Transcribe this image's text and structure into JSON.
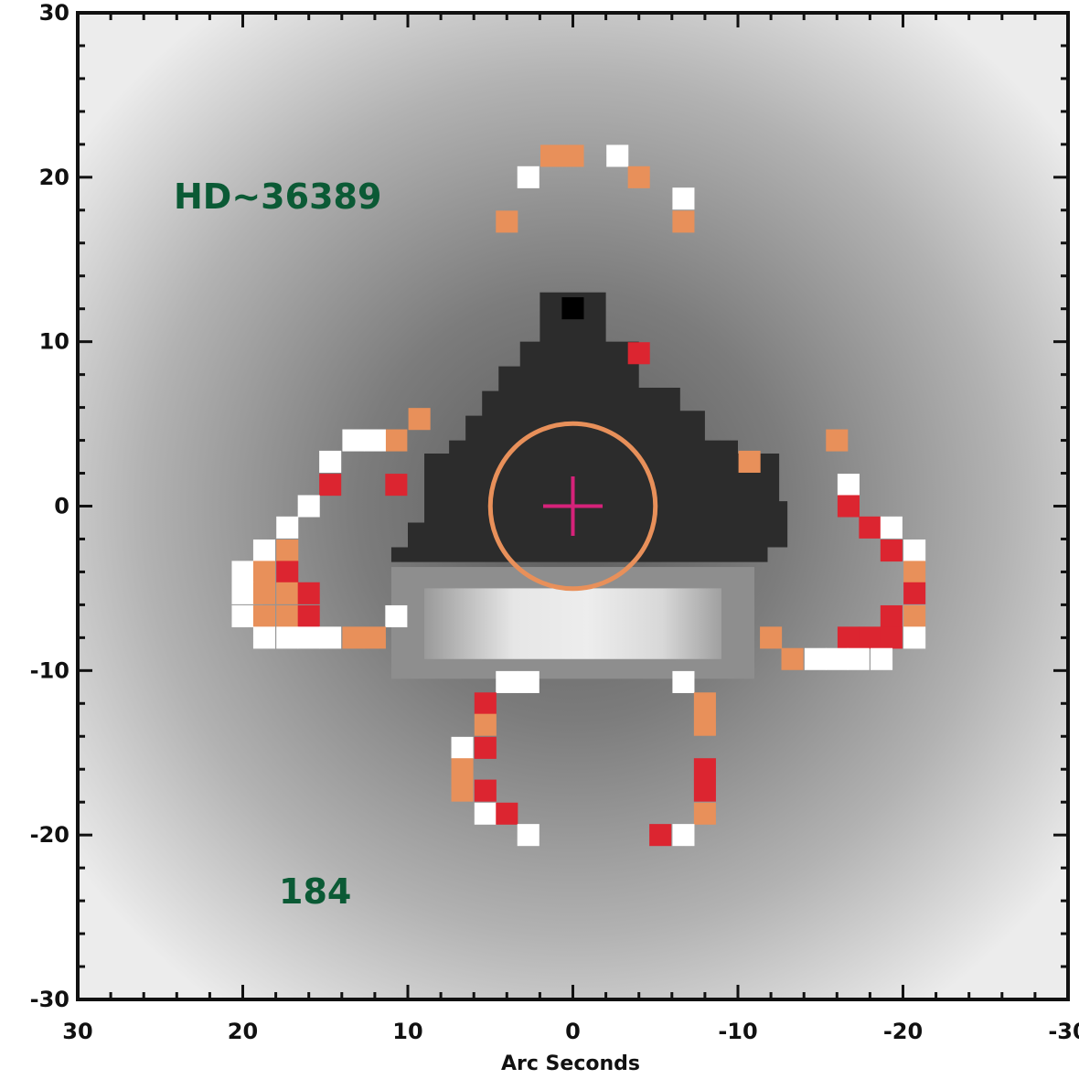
{
  "chart_data": {
    "type": "heatmap",
    "xlabel": "Arc Seconds",
    "ylabel": "",
    "xlim": [
      30,
      -30
    ],
    "ylim": [
      -30,
      30
    ],
    "xticks": [
      30,
      20,
      10,
      0,
      -10,
      -20,
      -30
    ],
    "yticks": [
      30,
      20,
      10,
      0,
      -10,
      -20,
      -30
    ],
    "annotations": [
      "HD~36389",
      "184"
    ],
    "target_circle": {
      "x": 0,
      "y": 0,
      "radius": 5
    },
    "marker": {
      "x": 0,
      "y": 0,
      "type": "cross"
    },
    "colors": {
      "annotation": "#0b5a35",
      "circle": "#e8905a",
      "marker": "#d6227a",
      "red_pixel": "#dc2530",
      "orange_pixel": "#e8905a",
      "white_pixel": "#ffffff"
    },
    "colored_pixels": [
      {
        "x": 0,
        "y": 21.3,
        "color": "orange"
      },
      {
        "x": -2.7,
        "y": 21.3,
        "color": "white"
      },
      {
        "x": 1.3,
        "y": 21.3,
        "color": "orange"
      },
      {
        "x": 2.7,
        "y": 20,
        "color": "white"
      },
      {
        "x": -4,
        "y": 20,
        "color": "orange"
      },
      {
        "x": -6.7,
        "y": 18.7,
        "color": "white"
      },
      {
        "x": 4,
        "y": 17.3,
        "color": "orange"
      },
      {
        "x": -6.7,
        "y": 17.3,
        "color": "orange"
      },
      {
        "x": -4,
        "y": 9.3,
        "color": "red"
      },
      {
        "x": 9.3,
        "y": 5.3,
        "color": "orange"
      },
      {
        "x": 10.7,
        "y": 4,
        "color": "orange"
      },
      {
        "x": 12,
        "y": 4,
        "color": "white"
      },
      {
        "x": 13.3,
        "y": 4,
        "color": "white"
      },
      {
        "x": 14.7,
        "y": 2.7,
        "color": "white"
      },
      {
        "x": 14.7,
        "y": 1.3,
        "color": "red"
      },
      {
        "x": 10.7,
        "y": 1.3,
        "color": "red"
      },
      {
        "x": 16,
        "y": 0,
        "color": "white"
      },
      {
        "x": 17.3,
        "y": -1.3,
        "color": "white"
      },
      {
        "x": 18.7,
        "y": -2.7,
        "color": "white"
      },
      {
        "x": 17.3,
        "y": -2.7,
        "color": "orange"
      },
      {
        "x": 20,
        "y": -4,
        "color": "white"
      },
      {
        "x": 18.7,
        "y": -4,
        "color": "orange"
      },
      {
        "x": 17.3,
        "y": -4,
        "color": "red"
      },
      {
        "x": 20,
        "y": -5.3,
        "color": "white"
      },
      {
        "x": 18.7,
        "y": -5.3,
        "color": "orange"
      },
      {
        "x": 17.3,
        "y": -5.3,
        "color": "orange"
      },
      {
        "x": 16,
        "y": -5.3,
        "color": "red"
      },
      {
        "x": 20,
        "y": -6.7,
        "color": "white"
      },
      {
        "x": 18.7,
        "y": -6.7,
        "color": "orange"
      },
      {
        "x": 17.3,
        "y": -6.7,
        "color": "orange"
      },
      {
        "x": 16,
        "y": -6.7,
        "color": "red"
      },
      {
        "x": 10.7,
        "y": -6.7,
        "color": "white"
      },
      {
        "x": 18.7,
        "y": -8,
        "color": "white"
      },
      {
        "x": 17.3,
        "y": -8,
        "color": "white"
      },
      {
        "x": 16,
        "y": -8,
        "color": "white"
      },
      {
        "x": 14.7,
        "y": -8,
        "color": "white"
      },
      {
        "x": 13.3,
        "y": -8,
        "color": "orange"
      },
      {
        "x": 12,
        "y": -8,
        "color": "orange"
      },
      {
        "x": -10.7,
        "y": 2.7,
        "color": "orange"
      },
      {
        "x": -16,
        "y": 4,
        "color": "orange"
      },
      {
        "x": -16.7,
        "y": 1.3,
        "color": "white"
      },
      {
        "x": -16.7,
        "y": 0,
        "color": "red"
      },
      {
        "x": -18,
        "y": -1.3,
        "color": "red"
      },
      {
        "x": -19.3,
        "y": -1.3,
        "color": "white"
      },
      {
        "x": -19.3,
        "y": -2.7,
        "color": "red"
      },
      {
        "x": -20.7,
        "y": -2.7,
        "color": "white"
      },
      {
        "x": -20.7,
        "y": -4,
        "color": "orange"
      },
      {
        "x": -20.7,
        "y": -5.3,
        "color": "red"
      },
      {
        "x": -19.3,
        "y": -6.7,
        "color": "red"
      },
      {
        "x": -20.7,
        "y": -6.7,
        "color": "orange"
      },
      {
        "x": -16.7,
        "y": -8,
        "color": "red"
      },
      {
        "x": -18,
        "y": -8,
        "color": "red"
      },
      {
        "x": -19.3,
        "y": -8,
        "color": "red"
      },
      {
        "x": -20.7,
        "y": -8,
        "color": "white"
      },
      {
        "x": -12,
        "y": -8,
        "color": "orange"
      },
      {
        "x": -13.3,
        "y": -9.3,
        "color": "orange"
      },
      {
        "x": -14.7,
        "y": -9.3,
        "color": "white"
      },
      {
        "x": -16,
        "y": -9.3,
        "color": "white"
      },
      {
        "x": -17.3,
        "y": -9.3,
        "color": "white"
      },
      {
        "x": -18.7,
        "y": -9.3,
        "color": "white"
      },
      {
        "x": 4,
        "y": -10.7,
        "color": "white"
      },
      {
        "x": 2.7,
        "y": -10.7,
        "color": "white"
      },
      {
        "x": -6.7,
        "y": -10.7,
        "color": "white"
      },
      {
        "x": 5.3,
        "y": -12,
        "color": "red"
      },
      {
        "x": -8,
        "y": -12,
        "color": "orange"
      },
      {
        "x": 5.3,
        "y": -13.3,
        "color": "orange"
      },
      {
        "x": -8,
        "y": -13.3,
        "color": "orange"
      },
      {
        "x": 6.7,
        "y": -14.7,
        "color": "white"
      },
      {
        "x": 5.3,
        "y": -14.7,
        "color": "red"
      },
      {
        "x": 6.7,
        "y": -16,
        "color": "orange"
      },
      {
        "x": -8,
        "y": -16,
        "color": "red"
      },
      {
        "x": 6.7,
        "y": -17.3,
        "color": "orange"
      },
      {
        "x": 5.3,
        "y": -17.3,
        "color": "red"
      },
      {
        "x": -8,
        "y": -17.3,
        "color": "red"
      },
      {
        "x": 5.3,
        "y": -18.7,
        "color": "white"
      },
      {
        "x": 4,
        "y": -18.7,
        "color": "red"
      },
      {
        "x": -8,
        "y": -18.7,
        "color": "orange"
      },
      {
        "x": 2.7,
        "y": -20,
        "color": "white"
      },
      {
        "x": -5.3,
        "y": -20,
        "color": "red"
      },
      {
        "x": -6.7,
        "y": -20,
        "color": "white"
      }
    ]
  }
}
